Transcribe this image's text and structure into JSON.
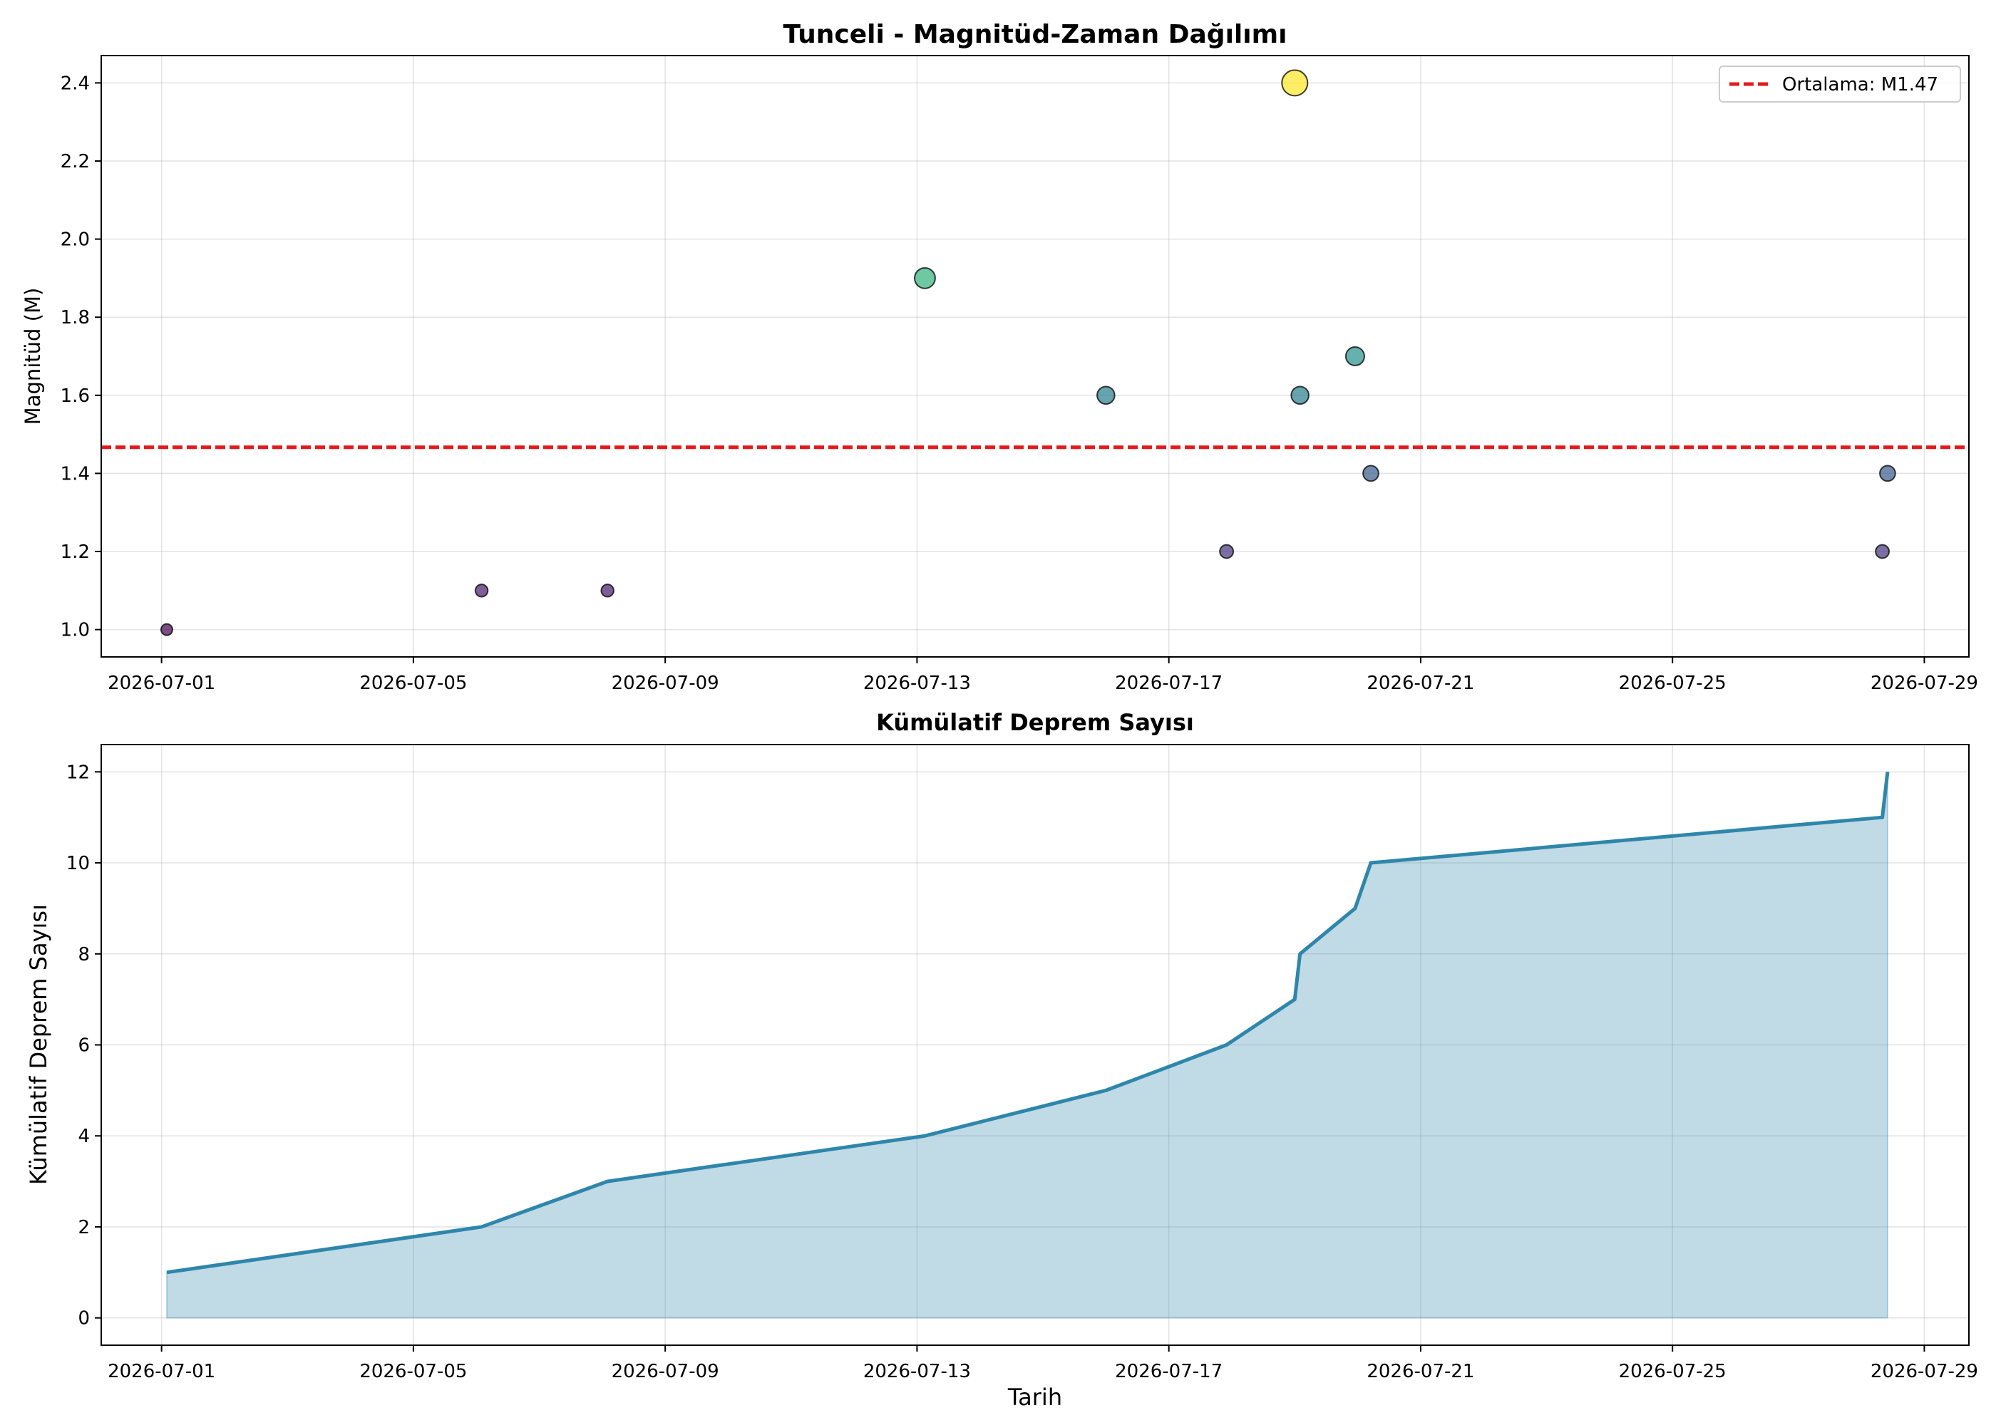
{
  "chart_data": [
    {
      "type": "scatter",
      "title": "Tunceli - Magnitüd-Zaman Dağılımı",
      "xlabel": "",
      "ylabel": "Magnitüd (M)",
      "x_type": "date",
      "xlim": [
        "2026-06-30T01:00",
        "2026-07-29T17:00"
      ],
      "ylim": [
        0.93,
        2.47
      ],
      "x_ticks": [
        "2026-07-01",
        "2026-07-05",
        "2026-07-09",
        "2026-07-13",
        "2026-07-17",
        "2026-07-21",
        "2026-07-25",
        "2026-07-29"
      ],
      "y_ticks": [
        1.0,
        1.2,
        1.4,
        1.6,
        1.8,
        2.0,
        2.2,
        2.4
      ],
      "y_tick_labels": [
        "1.0",
        "1.2",
        "1.4",
        "1.6",
        "1.8",
        "2.0",
        "2.2",
        "2.4"
      ],
      "grid": true,
      "legend_position": "top-right",
      "colormap": "viridis",
      "points": [
        {
          "x": "2026-07-01T02:00",
          "y": 1.0
        },
        {
          "x": "2026-07-06T02:00",
          "y": 1.1
        },
        {
          "x": "2026-07-08T02:00",
          "y": 1.1
        },
        {
          "x": "2026-07-13T03:00",
          "y": 1.9
        },
        {
          "x": "2026-07-16T00:00",
          "y": 1.6
        },
        {
          "x": "2026-07-17T22:00",
          "y": 1.2
        },
        {
          "x": "2026-07-19T00:00",
          "y": 2.4
        },
        {
          "x": "2026-07-19T02:00",
          "y": 1.6
        },
        {
          "x": "2026-07-19T23:00",
          "y": 1.7
        },
        {
          "x": "2026-07-20T05:00",
          "y": 1.4
        },
        {
          "x": "2026-07-28T08:00",
          "y": 1.2
        },
        {
          "x": "2026-07-28T10:00",
          "y": 1.4
        }
      ],
      "reference_line": {
        "y": 1.467,
        "label": "Ortalama: M1.47",
        "color": "#e31a1c"
      }
    },
    {
      "type": "area",
      "title": "Kümülatif Deprem Sayısı",
      "xlabel": "Tarih",
      "ylabel": "Kümülatif Deprem Sayısı",
      "x_type": "date",
      "xlim": [
        "2026-06-30T01:00",
        "2026-07-29T17:00"
      ],
      "ylim": [
        -0.6,
        12.6
      ],
      "x_ticks": [
        "2026-07-01",
        "2026-07-05",
        "2026-07-09",
        "2026-07-13",
        "2026-07-17",
        "2026-07-21",
        "2026-07-25",
        "2026-07-29"
      ],
      "y_ticks": [
        0,
        2,
        4,
        6,
        8,
        10,
        12
      ],
      "y_tick_labels": [
        "0",
        "2",
        "4",
        "6",
        "8",
        "10",
        "12"
      ],
      "grid": true,
      "line_color": "#2e86ab",
      "fill_color": "#2e86ab",
      "x": [
        "2026-07-01T02:00",
        "2026-07-06T02:00",
        "2026-07-08T02:00",
        "2026-07-13T03:00",
        "2026-07-16T00:00",
        "2026-07-17T22:00",
        "2026-07-19T00:00",
        "2026-07-19T02:00",
        "2026-07-19T23:00",
        "2026-07-20T05:00",
        "2026-07-28T08:00",
        "2026-07-28T10:00"
      ],
      "values": [
        1,
        2,
        3,
        4,
        5,
        6,
        7,
        8,
        9,
        10,
        11,
        12
      ]
    }
  ]
}
